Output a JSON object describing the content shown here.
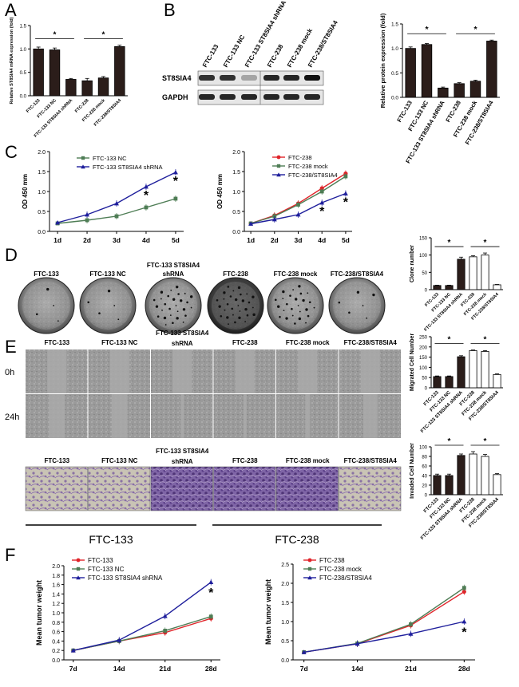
{
  "panels": {
    "A": "A",
    "B": "B",
    "C": "C",
    "D": "D",
    "E": "E",
    "F": "F"
  },
  "colors": {
    "dark_bar": "#2b1d1a",
    "red": "#e0242a",
    "green": "#4e7d55",
    "blue": "#1f1f9c",
    "plate": "#8f8f8f",
    "stain": "#7b5ea0"
  },
  "blot": {
    "lanes": [
      "FTC-133",
      "FTC-133 NC",
      "FTC-133 ST8SIA4 shRNA",
      "FTC-238",
      "FTC-238 mock",
      "FTC-238/ST8SIA4"
    ],
    "rows": [
      "ST8SIA4",
      "GAPDH"
    ],
    "band_intensity": [
      0.85,
      0.85,
      0.3,
      0.9,
      0.9,
      1.0
    ]
  },
  "dishes": {
    "labels": [
      "FTC-133",
      "FTC-133 NC",
      "FTC-133 ST8SIA4",
      "FTC-238",
      "FTC-238 mock",
      "FTC-238/ST8SIA4"
    ],
    "sublabel": "shRNA"
  },
  "wound": {
    "labels": [
      "FTC-133",
      "FTC-133 NC",
      "FTC-133 ST8SIA4",
      "FTC-238",
      "FTC-238 mock",
      "FTC-238/ST8SIA4"
    ],
    "sublabel": "shRNA",
    "rows": [
      "0h",
      "24h"
    ]
  },
  "transwell": {
    "labels": [
      "FTC-133",
      "FTC-133 NC",
      "FTC-133 ST8SIA4",
      "FTC-238",
      "FTC-238 mock",
      "FTC-238/ST8SIA4"
    ],
    "sublabel": "shRNA"
  },
  "groups": {
    "left": "FTC-133",
    "right": "FTC-238"
  },
  "chart_data": [
    {
      "id": "A",
      "type": "bar",
      "categories": [
        "FTC-133",
        "FTC-133 NC",
        "FTC-133 ST8SIA4 shRNA",
        "FTC-238",
        "FTC-238 mock",
        "FTC-238/ST8SIA4"
      ],
      "values": [
        1.0,
        0.98,
        0.35,
        0.32,
        0.38,
        1.05
      ],
      "errors": [
        0.04,
        0.04,
        0.02,
        0.05,
        0.03,
        0.03
      ],
      "ylabel": "Relative ST8SIA4 mRNA expression (fold)",
      "ylim": [
        0,
        1.5
      ],
      "yticks": [
        "0.0",
        "0.5",
        "1.0",
        "1.5"
      ],
      "sig": "*"
    },
    {
      "id": "B",
      "type": "bar",
      "categories": [
        "FTC-133",
        "FTC-133 NC",
        "FTC-133 ST8SIA4 shRNA",
        "FTC-238",
        "FTC-238 mock",
        "FTC-238/ST8SIA4"
      ],
      "values": [
        1.0,
        1.08,
        0.19,
        0.28,
        0.33,
        1.15
      ],
      "errors": [
        0.03,
        0.02,
        0.02,
        0.02,
        0.02,
        0.02
      ],
      "ylabel": "Relative protein expression (fold)",
      "ylim": [
        0,
        1.5
      ],
      "yticks": [
        "0.0",
        "0.5",
        "1.0",
        "1.5"
      ],
      "sig": "*"
    },
    {
      "id": "C1",
      "type": "line",
      "x": [
        "1d",
        "2d",
        "3d",
        "4d",
        "5d"
      ],
      "series": [
        {
          "name": "FTC-133 NC",
          "color": "green",
          "values": [
            0.2,
            0.28,
            0.38,
            0.6,
            0.82
          ]
        },
        {
          "name": "FTC-133 ST8SIA4 shRNA",
          "color": "blue",
          "values": [
            0.22,
            0.42,
            0.7,
            1.12,
            1.48
          ]
        }
      ],
      "ylabel": "OD 450 mm",
      "ylim": [
        0,
        2.0
      ],
      "yticks": [
        "0.0",
        "0.5",
        "1.0",
        "1.5",
        "2.0"
      ],
      "sig": "*",
      "sig_at": [
        3,
        4
      ]
    },
    {
      "id": "C2",
      "type": "line",
      "x": [
        "1d",
        "2d",
        "3d",
        "4d",
        "5d"
      ],
      "series": [
        {
          "name": "FTC-238",
          "color": "red",
          "values": [
            0.2,
            0.4,
            0.7,
            1.08,
            1.45
          ]
        },
        {
          "name": "FTC-238 mock",
          "color": "green",
          "values": [
            0.2,
            0.38,
            0.67,
            1.0,
            1.38
          ]
        },
        {
          "name": "FTC-238/ST8SIA4",
          "color": "blue",
          "values": [
            0.19,
            0.3,
            0.42,
            0.72,
            0.95
          ]
        }
      ],
      "ylabel": "OD 450 mm",
      "ylim": [
        0,
        2.0
      ],
      "yticks": [
        "0.0",
        "0.5",
        "1.0",
        "1.5",
        "2.0"
      ],
      "sig": "*",
      "sig_at": [
        3,
        4
      ]
    },
    {
      "id": "D",
      "type": "bar",
      "categories": [
        "FTC-133",
        "FTC-133 NC",
        "FTC-133 ST8SIA4 shRNA",
        "FTC-238",
        "FTC-238 mock",
        "FTC-238/ST8SIA4"
      ],
      "values": [
        12,
        12,
        88,
        95,
        100,
        14
      ],
      "errors": [
        1,
        1,
        6,
        3,
        6,
        1
      ],
      "fill": [
        "dark",
        "dark",
        "dark",
        "white",
        "white",
        "white"
      ],
      "ylabel": "Clone number",
      "ylim": [
        0,
        150
      ],
      "yticks": [
        "0",
        "50",
        "100",
        "150"
      ],
      "sig": "*"
    },
    {
      "id": "E1",
      "type": "bar",
      "categories": [
        "FTC-133",
        "FTC-133 NC",
        "FTC-133 ST8SIA4 shRNA",
        "FTC-238",
        "FTC-238 mock",
        "FTC-238/ST8SIA4"
      ],
      "values": [
        55,
        55,
        152,
        182,
        178,
        65
      ],
      "errors": [
        3,
        3,
        5,
        3,
        4,
        3
      ],
      "fill": [
        "dark",
        "dark",
        "dark",
        "white",
        "white",
        "white"
      ],
      "ylabel": "Migrated Cell Number",
      "ylim": [
        0,
        250
      ],
      "yticks": [
        "0",
        "50",
        "100",
        "150",
        "200",
        "250"
      ],
      "sig": "*"
    },
    {
      "id": "E2",
      "type": "bar",
      "categories": [
        "FTC-133",
        "FTC-133 NC",
        "FTC-133 ST8SIA4 shRNA",
        "FTC-238",
        "FTC-238 mock",
        "FTC-238/ST8SIA4"
      ],
      "values": [
        40,
        40,
        82,
        85,
        80,
        42
      ],
      "errors": [
        3,
        3,
        3,
        5,
        4,
        2
      ],
      "fill": [
        "dark",
        "dark",
        "dark",
        "white",
        "white",
        "white"
      ],
      "ylabel": "Invaded Cell Number",
      "ylim": [
        0,
        100
      ],
      "yticks": [
        "0",
        "20",
        "40",
        "60",
        "80",
        "100"
      ],
      "sig": "*"
    },
    {
      "id": "F1",
      "type": "line",
      "x": [
        "7d",
        "14d",
        "21d",
        "28d"
      ],
      "series": [
        {
          "name": "FTC-133",
          "color": "red",
          "values": [
            0.2,
            0.4,
            0.58,
            0.88
          ]
        },
        {
          "name": "FTC-133 NC",
          "color": "green",
          "values": [
            0.2,
            0.4,
            0.62,
            0.92
          ]
        },
        {
          "name": "FTC-133 ST8SIA4 shRNA",
          "color": "blue",
          "values": [
            0.2,
            0.42,
            0.93,
            1.65
          ]
        }
      ],
      "ylabel": "Mean tumor weight",
      "ylim": [
        0,
        2.0
      ],
      "yticks": [
        "0.0",
        "0.2",
        "0.4",
        "0.6",
        "0.8",
        "1.0",
        "1.2",
        "1.4",
        "1.6",
        "1.8",
        "2.0"
      ],
      "sig": "*",
      "sig_at": [
        3
      ]
    },
    {
      "id": "F2",
      "type": "line",
      "x": [
        "7d",
        "14d",
        "21d",
        "28d"
      ],
      "series": [
        {
          "name": "FTC-238",
          "color": "red",
          "values": [
            0.2,
            0.42,
            0.9,
            1.78
          ]
        },
        {
          "name": "FTC-238 mock",
          "color": "green",
          "values": [
            0.2,
            0.43,
            0.93,
            1.88
          ]
        },
        {
          "name": "FTC-238/ST8SIA4",
          "color": "blue",
          "values": [
            0.2,
            0.42,
            0.68,
            1.0
          ]
        }
      ],
      "ylabel": "Mean tumor weight",
      "ylim": [
        0,
        2.5
      ],
      "yticks": [
        "0.0",
        "0.5",
        "1.0",
        "1.5",
        "2.0",
        "2.5"
      ],
      "sig": "*",
      "sig_at": [
        3
      ]
    }
  ]
}
